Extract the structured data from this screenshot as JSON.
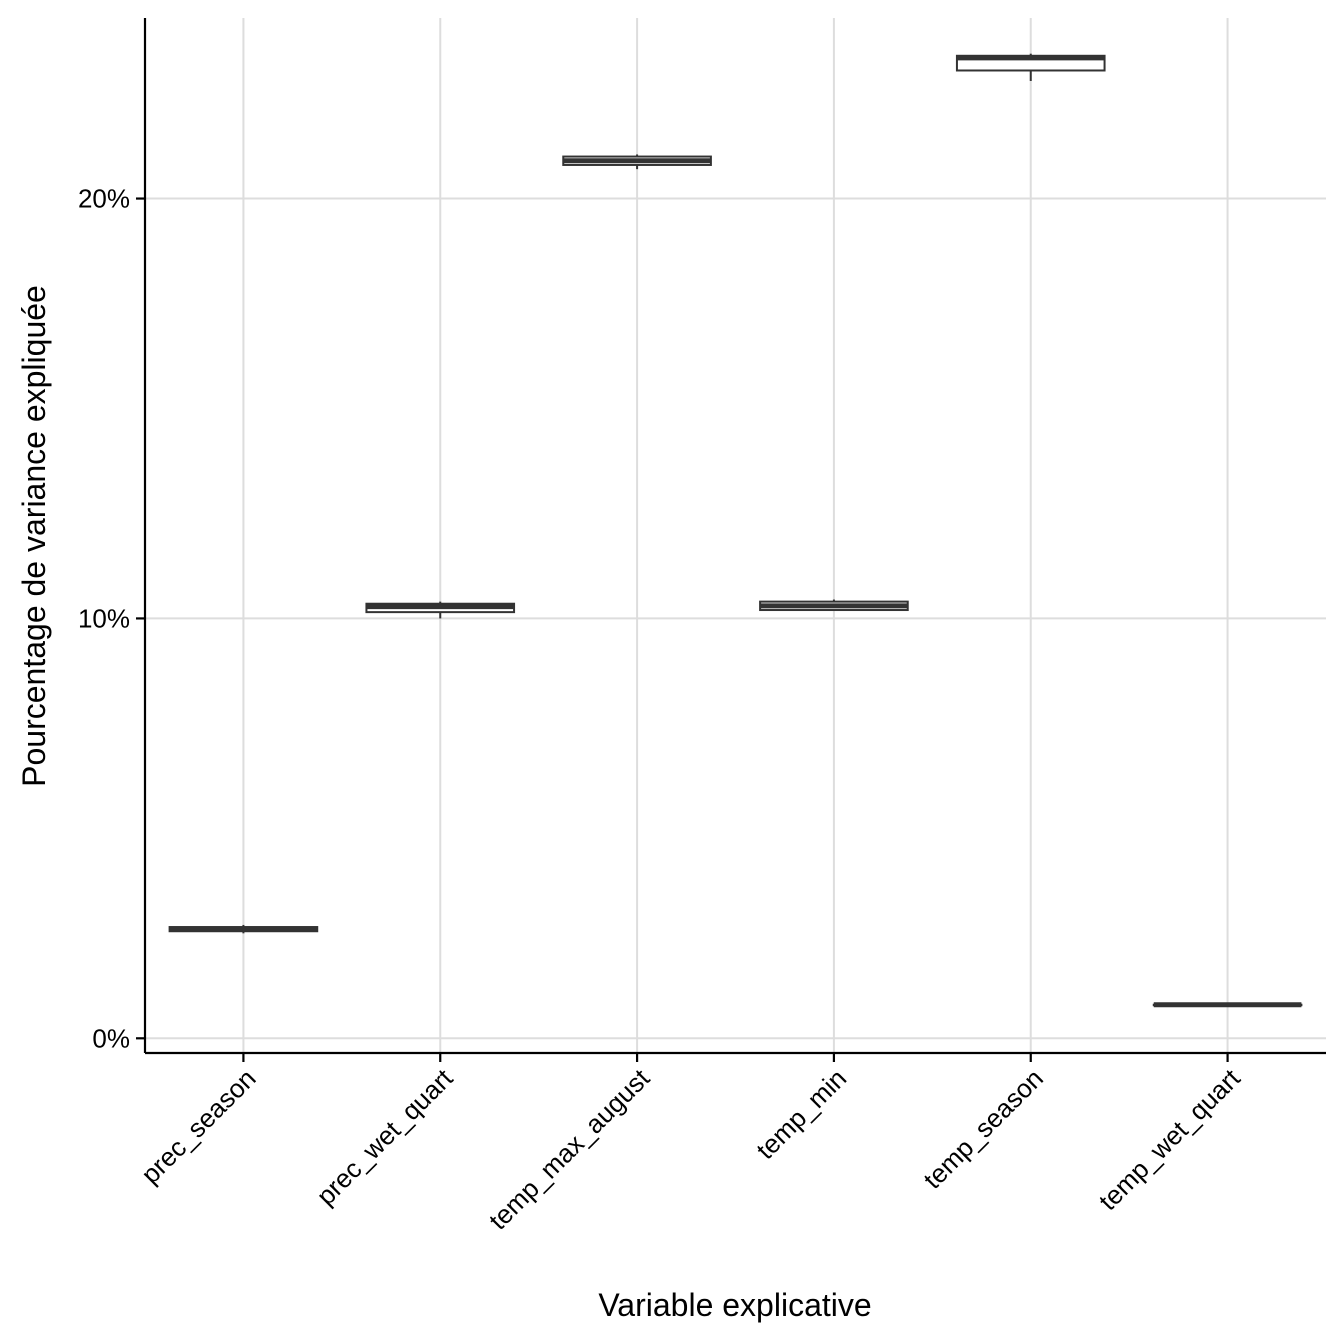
{
  "chart_data": {
    "type": "boxplot",
    "title": "",
    "xlabel": "Variable explicative",
    "ylabel": "Pourcentage de variance expliquée",
    "categories": [
      "prec_season",
      "prec_wet_quart",
      "temp_max_august",
      "temp_min",
      "temp_season",
      "temp_wet_quart"
    ],
    "y_ticks": [
      0,
      10,
      20
    ],
    "y_tick_labels": [
      "0%",
      "10%",
      "20%"
    ],
    "ylim": [
      -0.35,
      24.3
    ],
    "grid": true,
    "legend": "none",
    "boxes": [
      {
        "category": "prec_season",
        "min": 2.5,
        "q1": 2.55,
        "median": 2.6,
        "q3": 2.65,
        "max": 2.7
      },
      {
        "category": "prec_wet_quart",
        "min": 10.0,
        "q1": 10.15,
        "median": 10.28,
        "q3": 10.35,
        "max": 10.4
      },
      {
        "category": "temp_max_august",
        "min": 20.7,
        "q1": 20.8,
        "median": 20.9,
        "q3": 21.0,
        "max": 21.05
      },
      {
        "category": "temp_min",
        "min": 10.2,
        "q1": 10.2,
        "median": 10.3,
        "q3": 10.4,
        "max": 10.45
      },
      {
        "category": "temp_season",
        "min": 22.8,
        "q1": 23.05,
        "median": 23.35,
        "q3": 23.4,
        "max": 23.45
      },
      {
        "category": "temp_wet_quart",
        "min": 0.8,
        "q1": 0.8,
        "median": 0.8,
        "q3": 0.8,
        "max": 0.8
      }
    ],
    "colors": {
      "box_stroke": "#333333",
      "box_fill": "#ffffff",
      "grid": "#dddddd",
      "axis": "#000000"
    }
  }
}
